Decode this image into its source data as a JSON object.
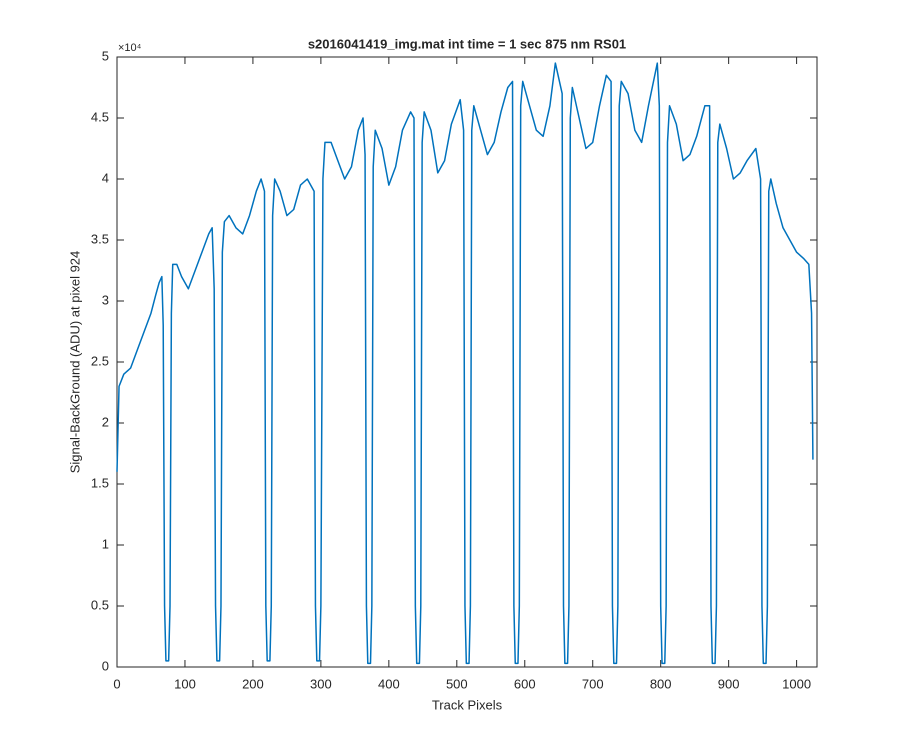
{
  "chart_data": {
    "type": "line",
    "title": "s2016041419_img.mat int time = 1 sec  875 nm RS01",
    "x_label": "Track Pixels",
    "y_label": "Signal-BackGround (ADU) at pixel 924",
    "y_exponent_label": "×10⁴",
    "xlim": [
      0,
      1030
    ],
    "ylim": [
      0,
      5
    ],
    "xticks": [
      0,
      100,
      200,
      300,
      400,
      500,
      600,
      700,
      800,
      900,
      1000
    ],
    "yticks": [
      0,
      0.5,
      1,
      1.5,
      2,
      2.5,
      3,
      3.5,
      4,
      4.5,
      5
    ],
    "series": [
      {
        "name": "signal",
        "color": "#0072bd",
        "x": [
          0,
          3,
          10,
          20,
          30,
          40,
          50,
          57,
          62,
          66,
          68,
          70,
          72,
          76,
          78,
          80,
          82,
          88,
          95,
          105,
          115,
          125,
          135,
          140,
          143,
          145,
          147,
          151,
          153,
          155,
          158,
          165,
          175,
          185,
          195,
          205,
          212,
          217,
          219,
          221,
          225,
          227,
          229,
          232,
          240,
          250,
          260,
          270,
          280,
          290,
          292,
          294,
          298,
          300,
          303,
          306,
          315,
          325,
          335,
          345,
          355,
          362,
          365,
          367,
          369,
          373,
          375,
          377,
          380,
          390,
          400,
          410,
          420,
          432,
          437,
          439,
          441,
          445,
          447,
          449,
          452,
          462,
          472,
          482,
          492,
          505,
          510,
          512,
          514,
          518,
          520,
          522,
          525,
          535,
          545,
          555,
          565,
          575,
          582,
          584,
          586,
          590,
          592,
          594,
          597,
          607,
          617,
          627,
          637,
          645,
          655,
          657,
          659,
          663,
          665,
          667,
          670,
          680,
          690,
          700,
          710,
          720,
          727,
          729,
          731,
          735,
          737,
          739,
          742,
          752,
          762,
          772,
          782,
          795,
          798,
          800,
          802,
          806,
          808,
          810,
          813,
          823,
          833,
          843,
          853,
          865,
          872,
          874,
          876,
          880,
          882,
          884,
          887,
          897,
          907,
          917,
          927,
          940,
          947,
          949,
          951,
          955,
          957,
          959,
          962,
          970,
          980,
          990,
          1000,
          1010,
          1018,
          1022,
          1024
        ],
        "values": [
          1.6,
          2.3,
          2.4,
          2.45,
          2.6,
          2.75,
          2.9,
          3.05,
          3.15,
          3.2,
          2.8,
          0.5,
          0.05,
          0.05,
          0.5,
          2.9,
          3.3,
          3.3,
          3.2,
          3.1,
          3.25,
          3.4,
          3.55,
          3.6,
          3.1,
          0.5,
          0.05,
          0.05,
          0.5,
          3.4,
          3.65,
          3.7,
          3.6,
          3.55,
          3.7,
          3.9,
          4.0,
          3.9,
          0.5,
          0.05,
          0.05,
          0.5,
          3.7,
          4.0,
          3.9,
          3.7,
          3.75,
          3.95,
          4.0,
          3.9,
          0.5,
          0.05,
          0.05,
          0.5,
          4.0,
          4.3,
          4.3,
          4.15,
          4.0,
          4.1,
          4.4,
          4.5,
          4.2,
          0.5,
          0.03,
          0.03,
          0.5,
          4.1,
          4.4,
          4.25,
          3.95,
          4.1,
          4.4,
          4.55,
          4.5,
          0.5,
          0.03,
          0.03,
          0.5,
          4.3,
          4.55,
          4.4,
          4.05,
          4.15,
          4.45,
          4.65,
          4.4,
          0.5,
          0.03,
          0.03,
          0.5,
          4.4,
          4.6,
          4.4,
          4.2,
          4.3,
          4.55,
          4.75,
          4.8,
          0.5,
          0.03,
          0.03,
          0.5,
          4.6,
          4.8,
          4.6,
          4.4,
          4.35,
          4.6,
          4.95,
          4.7,
          0.5,
          0.03,
          0.03,
          0.5,
          4.5,
          4.75,
          4.5,
          4.25,
          4.3,
          4.6,
          4.85,
          4.8,
          0.5,
          0.03,
          0.03,
          0.5,
          4.6,
          4.8,
          4.7,
          4.4,
          4.3,
          4.6,
          4.95,
          4.6,
          0.5,
          0.03,
          0.03,
          0.5,
          4.3,
          4.6,
          4.45,
          4.15,
          4.2,
          4.35,
          4.6,
          4.6,
          0.5,
          0.03,
          0.03,
          0.5,
          4.3,
          4.45,
          4.25,
          4.0,
          4.05,
          4.15,
          4.25,
          4.0,
          0.5,
          0.03,
          0.03,
          0.5,
          3.9,
          4.0,
          3.8,
          3.6,
          3.5,
          3.4,
          3.35,
          3.3,
          2.9,
          1.7
        ]
      }
    ]
  }
}
